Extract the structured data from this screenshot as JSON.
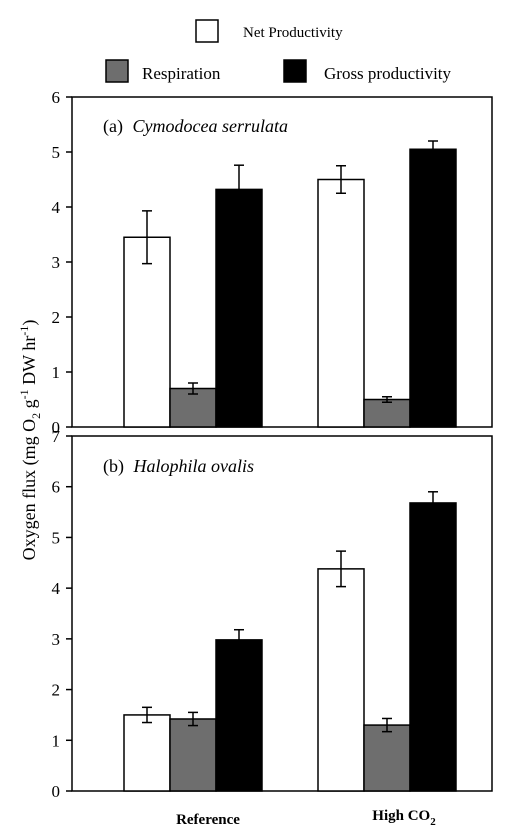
{
  "legend": {
    "items": [
      {
        "label": "Net Productivity",
        "color": "#ffffff"
      },
      {
        "label": "Respiration",
        "color": "#6e6e6e"
      },
      {
        "label": "Gross productivity",
        "color": "#000000"
      }
    ]
  },
  "y_axis_label": {
    "main": "Oxygen flux (mg O",
    "sub2": "2",
    "mid": " g",
    "sup1": "-1",
    "tail": " DW hr",
    "sup2": "-1",
    "close": ")"
  },
  "x_axis": {
    "categories": [
      {
        "main": "Reference",
        "sub": ""
      },
      {
        "main": "High CO",
        "sub": "2"
      }
    ]
  },
  "chart_data": [
    {
      "type": "bar",
      "panel": "(a)",
      "species": "Cymodocea serrulata",
      "categories": [
        "Reference",
        "High CO2"
      ],
      "series": [
        {
          "name": "Net Productivity",
          "values": [
            3.45,
            4.5
          ],
          "errors": [
            0.48,
            0.25
          ]
        },
        {
          "name": "Respiration",
          "values": [
            0.7,
            0.5
          ],
          "errors": [
            0.1,
            0.05
          ]
        },
        {
          "name": "Gross productivity",
          "values": [
            4.32,
            5.05
          ],
          "errors": [
            0.44,
            0.15
          ]
        }
      ],
      "ylim": [
        0,
        6
      ],
      "yticks": [
        0,
        1,
        2,
        3,
        4,
        5,
        6
      ],
      "grid": false
    },
    {
      "type": "bar",
      "panel": "(b)",
      "species": "Halophila ovalis",
      "categories": [
        "Reference",
        "High CO2"
      ],
      "series": [
        {
          "name": "Net Productivity",
          "values": [
            1.5,
            4.38
          ],
          "errors": [
            0.15,
            0.35
          ]
        },
        {
          "name": "Respiration",
          "values": [
            1.42,
            1.3
          ],
          "errors": [
            0.13,
            0.13
          ]
        },
        {
          "name": "Gross productivity",
          "values": [
            2.98,
            5.68
          ],
          "errors": [
            0.2,
            0.22
          ]
        }
      ],
      "ylim": [
        0,
        7
      ],
      "yticks": [
        0,
        1,
        2,
        3,
        4,
        5,
        6,
        7
      ],
      "grid": false
    }
  ]
}
